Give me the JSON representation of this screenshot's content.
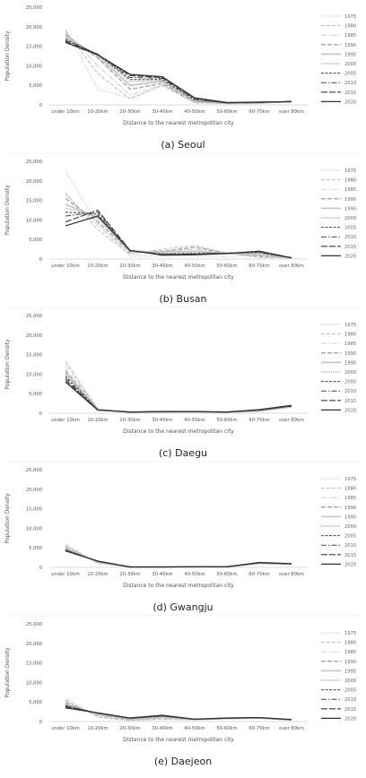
{
  "chart_data": [
    {
      "type": "line",
      "caption": "(a) Seoul",
      "xlabel": "Distance to the nearest metropolitan city",
      "ylabel": "Population Density",
      "ylim": [
        0,
        25000
      ],
      "yticks": [
        "0",
        "5,000",
        "10,000",
        "15,000",
        "20,000",
        "25,000"
      ],
      "categories": [
        "under 10km",
        "10-20km",
        "20-30km",
        "30-40km",
        "40-50km",
        "50-60km",
        "60-70km",
        "over 80km"
      ],
      "legend_position": "right",
      "grid": false,
      "series": [
        {
          "name": "1975",
          "values": [
            19500,
            4000,
            1800,
            4800,
            500,
            300,
            300,
            1200
          ]
        },
        {
          "name": "1980",
          "values": [
            19000,
            8000,
            1500,
            5000,
            600,
            300,
            300,
            1100
          ]
        },
        {
          "name": "1985",
          "values": [
            18500,
            10000,
            2500,
            5200,
            700,
            300,
            400,
            1000
          ]
        },
        {
          "name": "1990",
          "values": [
            18000,
            12000,
            4000,
            5500,
            800,
            350,
            450,
            1000
          ]
        },
        {
          "name": "1995",
          "values": [
            17500,
            12500,
            5000,
            6000,
            1000,
            400,
            500,
            900
          ]
        },
        {
          "name": "2000",
          "values": [
            17000,
            12800,
            6000,
            6200,
            1100,
            450,
            550,
            900
          ]
        },
        {
          "name": "2005",
          "values": [
            16800,
            12900,
            6500,
            6500,
            1300,
            500,
            600,
            850
          ]
        },
        {
          "name": "2010",
          "values": [
            16500,
            13000,
            7000,
            6800,
            1500,
            500,
            650,
            800
          ]
        },
        {
          "name": "2015",
          "values": [
            16200,
            12900,
            7500,
            7000,
            1700,
            550,
            700,
            800
          ]
        },
        {
          "name": "2020",
          "values": [
            16000,
            12800,
            7800,
            7200,
            1800,
            600,
            700,
            800
          ]
        }
      ]
    },
    {
      "type": "line",
      "caption": "(b) Busan",
      "xlabel": "Distance to the nearest metropolitan city",
      "ylabel": "Population Density",
      "ylim": [
        0,
        25000
      ],
      "yticks": [
        "0",
        "5,000",
        "10,000",
        "15,000",
        "20,000",
        "25,000"
      ],
      "categories": [
        "under 10km",
        "10-20km",
        "20-30km",
        "30-40km",
        "40-50km",
        "50-60km",
        "60-70km",
        "over 80km"
      ],
      "legend_position": "right",
      "grid": false,
      "series": [
        {
          "name": "1975",
          "values": [
            22500,
            9000,
            800,
            800,
            700,
            600,
            900,
            300
          ]
        },
        {
          "name": "1980",
          "values": [
            17000,
            7500,
            1200,
            2500,
            3500,
            1500,
            400,
            300
          ]
        },
        {
          "name": "1985",
          "values": [
            16500,
            8500,
            1500,
            2000,
            2500,
            1400,
            600,
            300
          ]
        },
        {
          "name": "1990",
          "values": [
            15500,
            9500,
            1800,
            2000,
            3000,
            1500,
            800,
            300
          ]
        },
        {
          "name": "1995",
          "values": [
            14000,
            10500,
            2000,
            1800,
            2000,
            1500,
            1200,
            300
          ]
        },
        {
          "name": "2000",
          "values": [
            13000,
            11000,
            2000,
            1500,
            1600,
            1500,
            1500,
            300
          ]
        },
        {
          "name": "2005",
          "values": [
            12000,
            11500,
            2100,
            1300,
            1400,
            1500,
            1700,
            300
          ]
        },
        {
          "name": "2010",
          "values": [
            11000,
            12000,
            2200,
            1200,
            1300,
            1500,
            1800,
            300
          ]
        },
        {
          "name": "2015",
          "values": [
            9500,
            12500,
            2200,
            1100,
            1200,
            1500,
            1900,
            300
          ]
        },
        {
          "name": "2020",
          "values": [
            8500,
            11000,
            2200,
            1000,
            1100,
            1400,
            2000,
            300
          ]
        }
      ]
    },
    {
      "type": "line",
      "caption": "(c) Daegu",
      "xlabel": "Distance to the nearest metropolitan city",
      "ylabel": "Population Density",
      "ylim": [
        0,
        25000
      ],
      "yticks": [
        "0",
        "5,000",
        "10,000",
        "15,000",
        "20,000",
        "25,000"
      ],
      "categories": [
        "under 10km",
        "10-20km",
        "20-30km",
        "30-40km",
        "40-50km",
        "50-60km",
        "60-70km",
        "over 80km"
      ],
      "legend_position": "right",
      "grid": false,
      "series": [
        {
          "name": "1975",
          "values": [
            13500,
            1200,
            200,
            200,
            300,
            200,
            400,
            1500
          ]
        },
        {
          "name": "1980",
          "values": [
            13000,
            1100,
            200,
            250,
            300,
            200,
            450,
            1500
          ]
        },
        {
          "name": "1985",
          "values": [
            12000,
            1000,
            250,
            300,
            350,
            250,
            500,
            1600
          ]
        },
        {
          "name": "1990",
          "values": [
            11000,
            950,
            250,
            350,
            350,
            250,
            600,
            1700
          ]
        },
        {
          "name": "1995",
          "values": [
            10500,
            900,
            300,
            400,
            400,
            300,
            650,
            1700
          ]
        },
        {
          "name": "2000",
          "values": [
            10000,
            850,
            300,
            400,
            400,
            300,
            700,
            1800
          ]
        },
        {
          "name": "2005",
          "values": [
            9500,
            850,
            300,
            400,
            400,
            300,
            750,
            1800
          ]
        },
        {
          "name": "2010",
          "values": [
            9000,
            800,
            300,
            400,
            400,
            300,
            800,
            1900
          ]
        },
        {
          "name": "2015",
          "values": [
            8500,
            800,
            300,
            400,
            400,
            300,
            850,
            1900
          ]
        },
        {
          "name": "2020",
          "values": [
            8000,
            800,
            300,
            400,
            400,
            300,
            900,
            2000
          ]
        }
      ]
    },
    {
      "type": "line",
      "caption": "(d) Gwangju",
      "xlabel": "Distance to the nearest metropolitan city",
      "ylabel": "Population Density",
      "ylim": [
        0,
        25000
      ],
      "yticks": [
        "0",
        "5,000",
        "10,000",
        "15,000",
        "20,000",
        "25,000"
      ],
      "categories": [
        "under 10km",
        "10-20km",
        "20-30km",
        "30-40km",
        "40-50km",
        "50-60km",
        "60-70km",
        "over 80km"
      ],
      "legend_position": "right",
      "grid": false,
      "series": [
        {
          "name": "1975",
          "values": [
            6000,
            1000,
            100,
            100,
            150,
            100,
            900,
            700
          ]
        },
        {
          "name": "1980",
          "values": [
            5700,
            1100,
            100,
            100,
            150,
            100,
            950,
            750
          ]
        },
        {
          "name": "1985",
          "values": [
            5400,
            1200,
            100,
            100,
            150,
            100,
            1000,
            800
          ]
        },
        {
          "name": "1990",
          "values": [
            5100,
            1300,
            100,
            100,
            150,
            100,
            1000,
            800
          ]
        },
        {
          "name": "1995",
          "values": [
            4800,
            1400,
            100,
            100,
            150,
            150,
            1050,
            850
          ]
        },
        {
          "name": "2000",
          "values": [
            4600,
            1500,
            100,
            100,
            150,
            150,
            1100,
            850
          ]
        },
        {
          "name": "2005",
          "values": [
            4500,
            1500,
            100,
            100,
            150,
            150,
            1150,
            900
          ]
        },
        {
          "name": "2010",
          "values": [
            4400,
            1600,
            100,
            100,
            150,
            150,
            1200,
            900
          ]
        },
        {
          "name": "2015",
          "values": [
            4300,
            1600,
            100,
            100,
            150,
            150,
            1200,
            900
          ]
        },
        {
          "name": "2020",
          "values": [
            4200,
            1600,
            100,
            100,
            150,
            150,
            1250,
            950
          ]
        }
      ]
    },
    {
      "type": "line",
      "caption": "(e) Daejeon",
      "xlabel": "Distance to the nearest metropolitan city",
      "ylabel": "Population Density",
      "ylim": [
        0,
        25000
      ],
      "yticks": [
        "0",
        "5,000",
        "10,000",
        "15,000",
        "20,000",
        "25,000"
      ],
      "categories": [
        "under 10km",
        "10-20km",
        "20-30km",
        "30-40km",
        "40-50km",
        "50-60km",
        "60-70km",
        "over 80km"
      ],
      "legend_position": "right",
      "grid": false,
      "series": [
        {
          "name": "1975",
          "values": [
            6000,
            1000,
            200,
            500,
            400,
            700,
            800,
            300
          ]
        },
        {
          "name": "1980",
          "values": [
            5500,
            1200,
            300,
            700,
            400,
            700,
            800,
            350
          ]
        },
        {
          "name": "1985",
          "values": [
            5200,
            1500,
            400,
            900,
            500,
            750,
            850,
            400
          ]
        },
        {
          "name": "1990",
          "values": [
            4800,
            1700,
            500,
            1100,
            500,
            750,
            900,
            400
          ]
        },
        {
          "name": "1995",
          "values": [
            4500,
            1900,
            600,
            1200,
            500,
            800,
            900,
            450
          ]
        },
        {
          "name": "2000",
          "values": [
            4300,
            2000,
            700,
            1300,
            550,
            800,
            950,
            450
          ]
        },
        {
          "name": "2005",
          "values": [
            4100,
            2100,
            800,
            1400,
            550,
            850,
            950,
            500
          ]
        },
        {
          "name": "2010",
          "values": [
            3900,
            2200,
            900,
            1500,
            600,
            850,
            1000,
            500
          ]
        },
        {
          "name": "2015",
          "values": [
            3700,
            2200,
            900,
            1500,
            600,
            900,
            1000,
            500
          ]
        },
        {
          "name": "2020",
          "values": [
            3500,
            2200,
            900,
            1600,
            600,
            900,
            1000,
            500
          ]
        }
      ]
    }
  ]
}
